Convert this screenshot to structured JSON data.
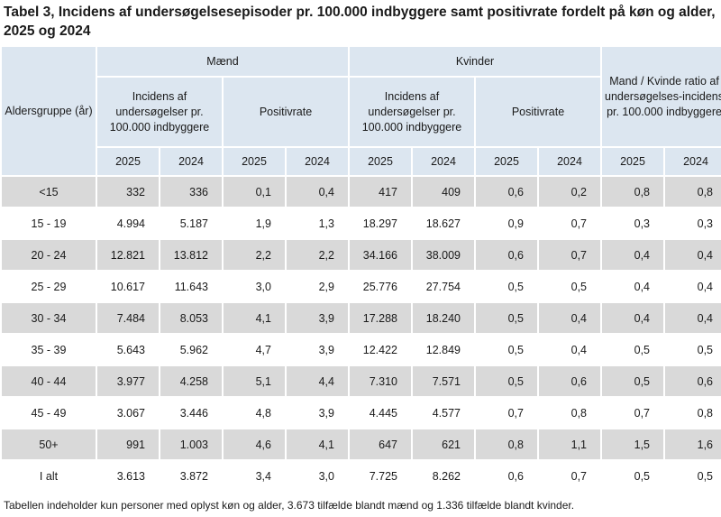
{
  "title": "Tabel 3, Incidens af undersøgelsesepisoder pr. 100.000 indbyggere samt positivrate fordelt på køn og alder, 2025 og 2024",
  "header": {
    "age_group": "Aldersgruppe (år)",
    "men": "Mænd",
    "women": "Kvinder",
    "ratio": "Mand / Kvinde ratio af undersøgelses-incidens pr. 100.000 indbyggere",
    "incidence": "Incidens af undersøgelser pr. 100.000 indbyggere",
    "positivity": "Positivrate",
    "year_2025": "2025",
    "year_2024": "2024"
  },
  "rows": [
    {
      "age": "<15",
      "v": [
        "332",
        "336",
        "0,1",
        "0,4",
        "417",
        "409",
        "0,6",
        "0,2",
        "0,8",
        "0,8"
      ]
    },
    {
      "age": "15 - 19",
      "v": [
        "4.994",
        "5.187",
        "1,9",
        "1,3",
        "18.297",
        "18.627",
        "0,9",
        "0,7",
        "0,3",
        "0,3"
      ]
    },
    {
      "age": "20 - 24",
      "v": [
        "12.821",
        "13.812",
        "2,2",
        "2,2",
        "34.166",
        "38.009",
        "0,6",
        "0,7",
        "0,4",
        "0,4"
      ]
    },
    {
      "age": "25 - 29",
      "v": [
        "10.617",
        "11.643",
        "3,0",
        "2,9",
        "25.776",
        "27.754",
        "0,5",
        "0,5",
        "0,4",
        "0,4"
      ]
    },
    {
      "age": "30 - 34",
      "v": [
        "7.484",
        "8.053",
        "4,1",
        "3,9",
        "17.288",
        "18.240",
        "0,5",
        "0,4",
        "0,4",
        "0,4"
      ]
    },
    {
      "age": "35 - 39",
      "v": [
        "5.643",
        "5.962",
        "4,7",
        "3,9",
        "12.422",
        "12.849",
        "0,5",
        "0,4",
        "0,5",
        "0,5"
      ]
    },
    {
      "age": "40 - 44",
      "v": [
        "3.977",
        "4.258",
        "5,1",
        "4,4",
        "7.310",
        "7.571",
        "0,5",
        "0,6",
        "0,5",
        "0,6"
      ]
    },
    {
      "age": "45 - 49",
      "v": [
        "3.067",
        "3.446",
        "4,8",
        "3,9",
        "4.445",
        "4.577",
        "0,7",
        "0,8",
        "0,7",
        "0,8"
      ]
    },
    {
      "age": "50+",
      "v": [
        "991",
        "1.003",
        "4,6",
        "4,1",
        "647",
        "621",
        "0,8",
        "1,1",
        "1,5",
        "1,6"
      ]
    },
    {
      "age": "I alt",
      "v": [
        "3.613",
        "3.872",
        "3,4",
        "3,0",
        "7.725",
        "8.262",
        "0,6",
        "0,7",
        "0,5",
        "0,5"
      ]
    }
  ],
  "footnote": "Tabellen indeholder kun personer med oplyst køn og alder, 3.673 tilfælde blandt mænd og 1.336 tilfælde blandt kvinder."
}
